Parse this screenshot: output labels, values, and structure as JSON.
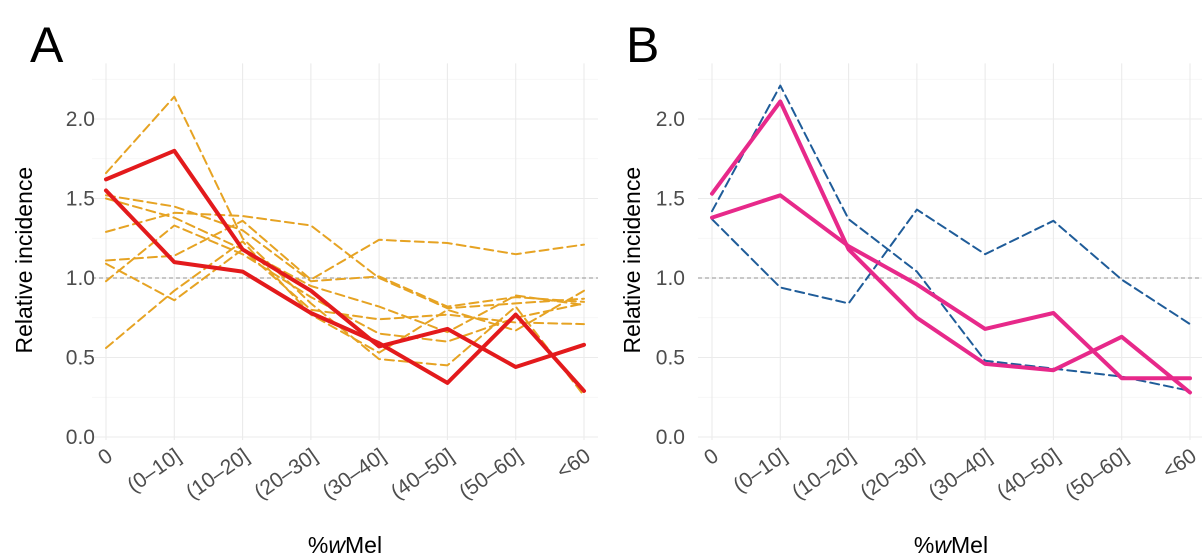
{
  "chart_data": [
    {
      "panel_label": "A",
      "type": "line",
      "xlabel": "%wMel",
      "ylabel": "Relative incidence",
      "categories": [
        "0",
        "(0–10]",
        "(10–20]",
        "(20–30]",
        "(30–40]",
        "(40–50]",
        "(50–60]",
        "<60"
      ],
      "ylim": [
        0,
        2.35
      ],
      "yticks": [
        "0.0",
        "0.5",
        "1.0",
        "1.5",
        "2.0"
      ],
      "reference_line": 1.0,
      "grid": true,
      "series": [
        {
          "style": "solid",
          "color": "#e31a1c",
          "values": [
            1.62,
            1.8,
            1.18,
            0.92,
            0.57,
            0.68,
            0.44,
            0.58
          ]
        },
        {
          "style": "solid",
          "color": "#e31a1c",
          "values": [
            1.55,
            1.1,
            1.04,
            0.78,
            0.59,
            0.34,
            0.77,
            0.29
          ]
        },
        {
          "style": "dashed",
          "color": "#e6a323",
          "values": [
            1.66,
            2.14,
            1.25,
            0.84,
            0.49,
            0.45,
            0.82,
            0.26
          ]
        },
        {
          "style": "dashed",
          "color": "#e6a323",
          "values": [
            1.52,
            1.45,
            1.3,
            0.98,
            1.01,
            0.82,
            0.88,
            0.85
          ]
        },
        {
          "style": "dashed",
          "color": "#e6a323",
          "values": [
            1.5,
            1.38,
            1.18,
            0.8,
            0.74,
            0.77,
            0.72,
            0.71
          ]
        },
        {
          "style": "dashed",
          "color": "#e6a323",
          "values": [
            1.29,
            1.41,
            1.39,
            1.33,
            1.0,
            0.81,
            0.84,
            0.87
          ]
        },
        {
          "style": "dashed",
          "color": "#e6a323",
          "values": [
            1.11,
            1.14,
            1.36,
            0.99,
            1.24,
            1.22,
            1.15,
            1.21
          ]
        },
        {
          "style": "dashed",
          "color": "#e6a323",
          "values": [
            1.09,
            0.86,
            1.18,
            0.95,
            0.82,
            0.66,
            0.89,
            0.83
          ]
        },
        {
          "style": "dashed",
          "color": "#e6a323",
          "values": [
            0.98,
            1.33,
            1.15,
            0.88,
            0.65,
            0.6,
            0.75,
            0.84
          ]
        },
        {
          "style": "dashed",
          "color": "#e6a323",
          "values": [
            0.56,
            0.92,
            1.23,
            0.77,
            0.53,
            0.8,
            0.67,
            0.92
          ]
        }
      ]
    },
    {
      "panel_label": "B",
      "type": "line",
      "xlabel": "%wMel",
      "ylabel": "Relative incidence",
      "categories": [
        "0",
        "(0–10]",
        "(10–20]",
        "(20–30]",
        "(30–40]",
        "(40–50]",
        "(50–60]",
        "<60"
      ],
      "ylim": [
        0,
        2.35
      ],
      "yticks": [
        "0.0",
        "0.5",
        "1.0",
        "1.5",
        "2.0"
      ],
      "reference_line": 1.0,
      "grid": true,
      "series": [
        {
          "style": "solid",
          "color": "#e7298a",
          "values": [
            1.53,
            2.11,
            1.18,
            0.75,
            0.46,
            0.42,
            0.63,
            0.28
          ]
        },
        {
          "style": "solid",
          "color": "#e7298a",
          "values": [
            1.38,
            1.52,
            1.2,
            0.96,
            0.68,
            0.78,
            0.37,
            0.37
          ]
        },
        {
          "style": "dashed",
          "color": "#1f5c99",
          "values": [
            1.42,
            2.21,
            1.37,
            1.04,
            0.48,
            0.43,
            0.38,
            0.29
          ]
        },
        {
          "style": "dashed",
          "color": "#1f5c99",
          "values": [
            1.37,
            0.94,
            0.84,
            1.43,
            1.15,
            1.36,
            0.99,
            0.71
          ]
        }
      ]
    }
  ]
}
